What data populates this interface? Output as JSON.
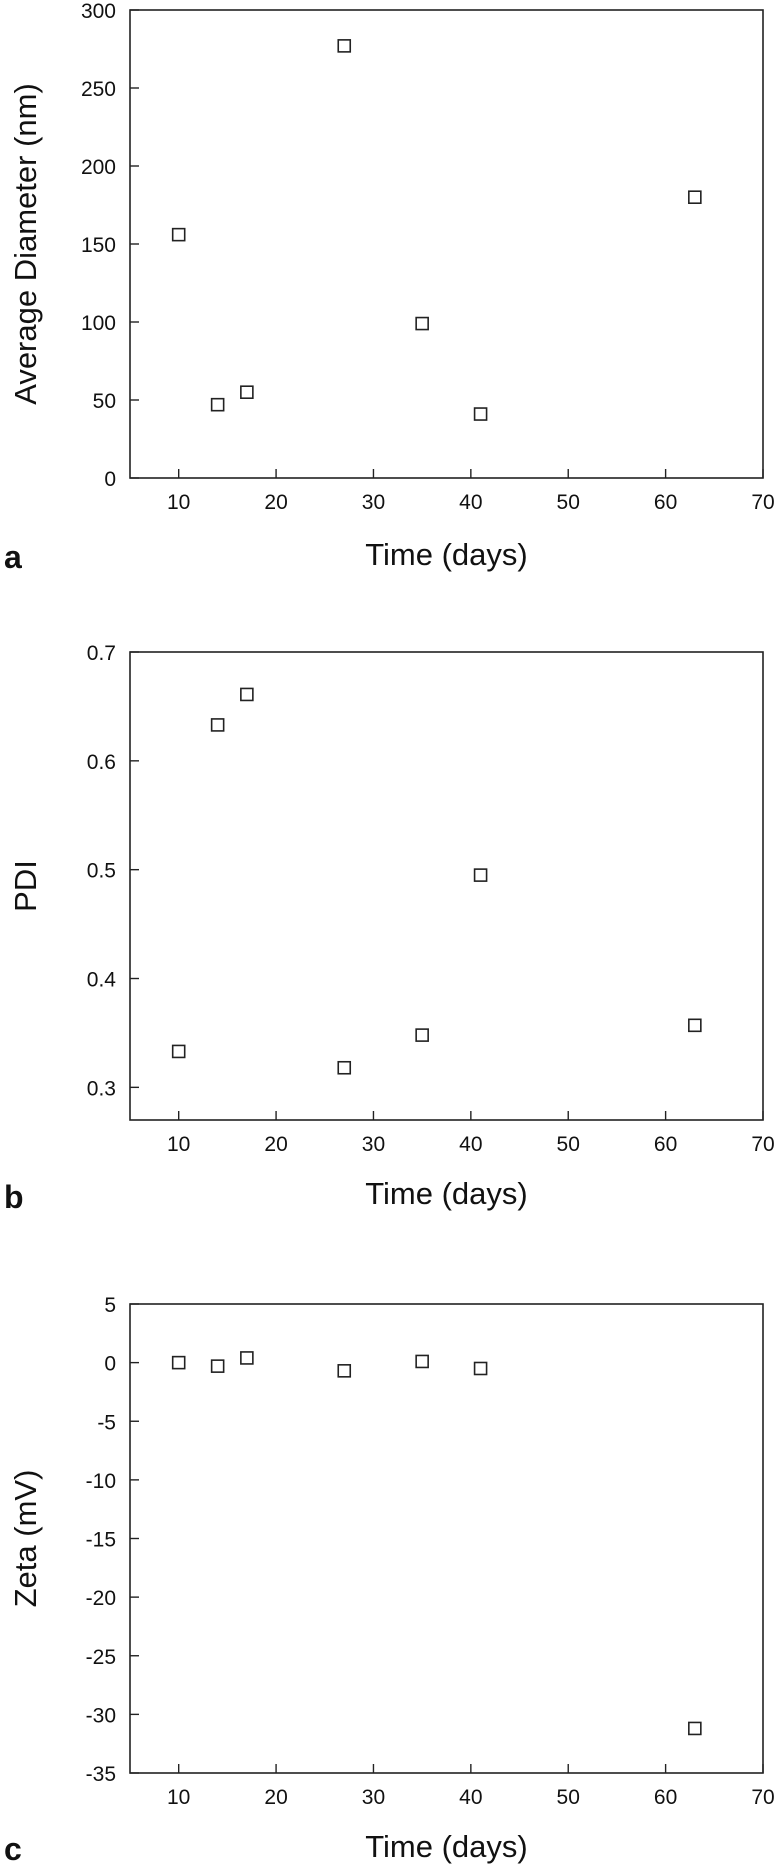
{
  "chart_data": [
    {
      "type": "scatter",
      "panel_label": "a",
      "xlabel": "Time (days)",
      "ylabel": "Average Diameter (nm)",
      "xlim": [
        5,
        70
      ],
      "ylim": [
        0,
        300
      ],
      "x_ticks": [
        10,
        20,
        30,
        40,
        50,
        60,
        70
      ],
      "y_ticks": [
        0,
        50,
        100,
        150,
        200,
        250,
        300
      ],
      "marker": "open-square",
      "x": [
        10,
        14,
        17,
        27,
        35,
        41,
        63
      ],
      "y": [
        156,
        47,
        55,
        277,
        99,
        41,
        180
      ]
    },
    {
      "type": "scatter",
      "panel_label": "b",
      "xlabel": "Time (days)",
      "ylabel": "PDI",
      "xlim": [
        5,
        70
      ],
      "ylim": [
        0.27,
        0.7
      ],
      "x_ticks": [
        10,
        20,
        30,
        40,
        50,
        60,
        70
      ],
      "y_ticks": [
        0.3,
        0.4,
        0.5,
        0.6,
        0.7
      ],
      "marker": "open-square",
      "x": [
        10,
        14,
        17,
        27,
        35,
        41,
        63
      ],
      "y": [
        0.333,
        0.633,
        0.661,
        0.318,
        0.348,
        0.495,
        0.357
      ]
    },
    {
      "type": "scatter",
      "panel_label": "c",
      "xlabel": "Time (days)",
      "ylabel": "Zeta (mV)",
      "xlim": [
        5,
        70
      ],
      "ylim": [
        -35,
        5
      ],
      "x_ticks": [
        10,
        20,
        30,
        40,
        50,
        60,
        70
      ],
      "y_ticks": [
        5,
        0,
        -5,
        -10,
        -15,
        -20,
        -25,
        -30,
        -35
      ],
      "marker": "open-square",
      "x": [
        10,
        14,
        17,
        27,
        35,
        41,
        63
      ],
      "y": [
        0.0,
        -0.3,
        0.4,
        -0.7,
        0.1,
        -0.5,
        -31.2
      ]
    }
  ]
}
